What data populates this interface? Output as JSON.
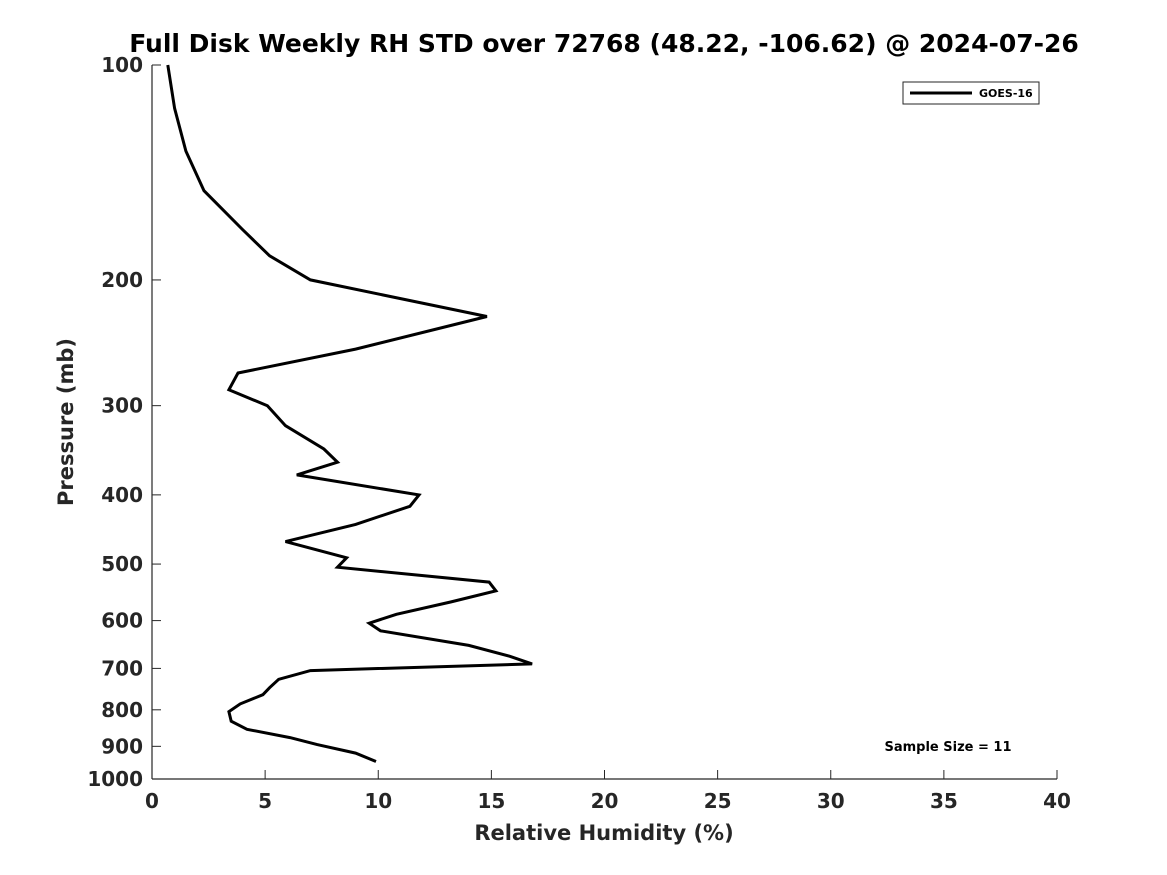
{
  "chart_data": {
    "type": "line",
    "title": "Full Disk Weekly RH STD over 72768 (48.22, -106.62) @ 2024-07-26",
    "xlabel": "Relative Humidity (%)",
    "ylabel": "Pressure (mb)",
    "xlim": [
      0,
      40
    ],
    "ylim": [
      1000,
      100
    ],
    "yscale": "log",
    "y_reversed": true,
    "x_ticks": [
      "0",
      "5",
      "10",
      "15",
      "20",
      "25",
      "30",
      "35",
      "40"
    ],
    "y_ticks": [
      "100",
      "200",
      "300",
      "400",
      "500",
      "600",
      "700",
      "800",
      "900",
      "1000"
    ],
    "grid": false,
    "legend_position": "top-right",
    "annotation": "Sample Size = 11",
    "series": [
      {
        "name": "GOES-16",
        "color": "#000000",
        "x": [
          0.7,
          1.0,
          1.5,
          2.3,
          4.0,
          5.2,
          7.0,
          14.8,
          9.0,
          3.8,
          3.4,
          5.1,
          5.9,
          7.6,
          8.2,
          6.4,
          11.8,
          11.4,
          9.0,
          5.9,
          8.6,
          8.2,
          14.9,
          15.2,
          13.2,
          10.8,
          9.6,
          10.1,
          14.0,
          15.8,
          16.8,
          7.0,
          5.6,
          5.2,
          4.9,
          3.9,
          3.4,
          3.5,
          4.2,
          6.1,
          7.3,
          9.0,
          9.9
        ],
        "y": [
          100,
          115,
          132,
          150,
          170,
          185,
          200,
          225,
          250,
          270,
          285,
          300,
          320,
          345,
          360,
          375,
          400,
          415,
          440,
          465,
          490,
          505,
          530,
          545,
          565,
          588,
          605,
          620,
          650,
          673,
          690,
          705,
          725,
          745,
          762,
          785,
          805,
          830,
          852,
          875,
          895,
          920,
          945
        ]
      }
    ]
  }
}
